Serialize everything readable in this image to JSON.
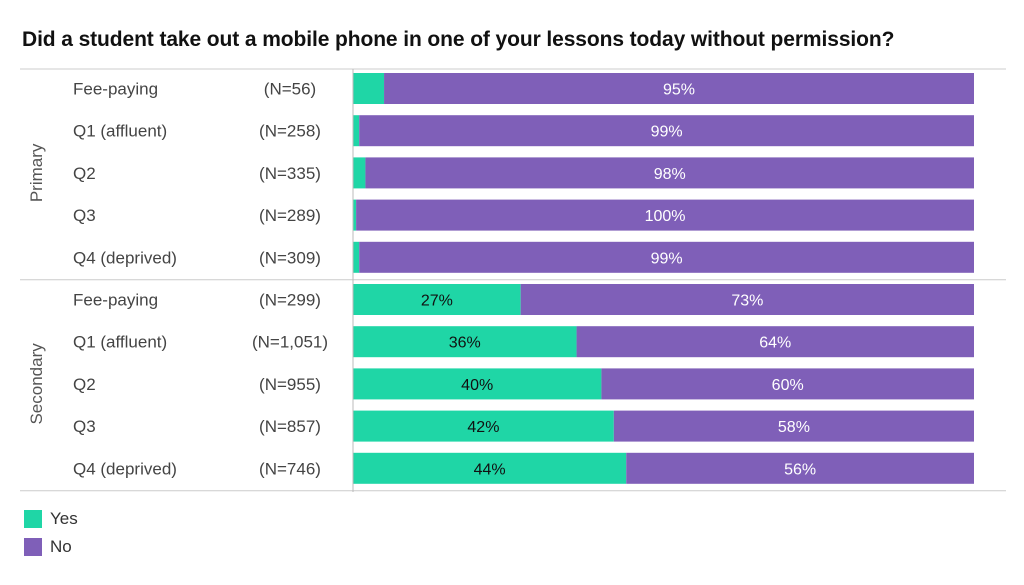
{
  "title": "Did a student take out a mobile phone in one of your lessons today without permission?",
  "colors": {
    "yes": "#1fd6a6",
    "no": "#7f5fb8",
    "rule": "#cccccc"
  },
  "legend": [
    {
      "label": "Yes",
      "color": "#1fd6a6"
    },
    {
      "label": "No",
      "color": "#7f5fb8"
    }
  ],
  "chart_data": {
    "type": "bar",
    "orientation": "horizontal",
    "stacked": true,
    "series": [
      {
        "name": "Yes",
        "color": "#1fd6a6"
      },
      {
        "name": "No",
        "color": "#7f5fb8"
      }
    ],
    "groups": [
      {
        "name": "Primary",
        "rows": [
          {
            "category": "Fee-paying",
            "n": "(N=56)",
            "yes": 5,
            "no": 95,
            "yes_label": "",
            "no_label": "95%"
          },
          {
            "category": "Q1 (affluent)",
            "n": "(N=258)",
            "yes": 1,
            "no": 99,
            "yes_label": "",
            "no_label": "99%"
          },
          {
            "category": "Q2",
            "n": "(N=335)",
            "yes": 2,
            "no": 98,
            "yes_label": "",
            "no_label": "98%"
          },
          {
            "category": "Q3",
            "n": "(N=289)",
            "yes": 0.5,
            "no": 99.5,
            "yes_label": "",
            "no_label": "100%"
          },
          {
            "category": "Q4 (deprived)",
            "n": "(N=309)",
            "yes": 1,
            "no": 99,
            "yes_label": "",
            "no_label": "99%"
          }
        ]
      },
      {
        "name": "Secondary",
        "rows": [
          {
            "category": "Fee-paying",
            "n": "(N=299)",
            "yes": 27,
            "no": 73,
            "yes_label": "27%",
            "no_label": "73%"
          },
          {
            "category": "Q1 (affluent)",
            "n": "(N=1,051)",
            "yes": 36,
            "no": 64,
            "yes_label": "36%",
            "no_label": "64%"
          },
          {
            "category": "Q2",
            "n": "(N=955)",
            "yes": 40,
            "no": 60,
            "yes_label": "40%",
            "no_label": "60%"
          },
          {
            "category": "Q3",
            "n": "(N=857)",
            "yes": 42,
            "no": 58,
            "yes_label": "42%",
            "no_label": "58%"
          },
          {
            "category": "Q4 (deprived)",
            "n": "(N=746)",
            "yes": 44,
            "no": 56,
            "yes_label": "44%",
            "no_label": "56%"
          }
        ]
      }
    ],
    "xlim": [
      0,
      100
    ],
    "grid": false,
    "legend_position": "bottom-left"
  }
}
